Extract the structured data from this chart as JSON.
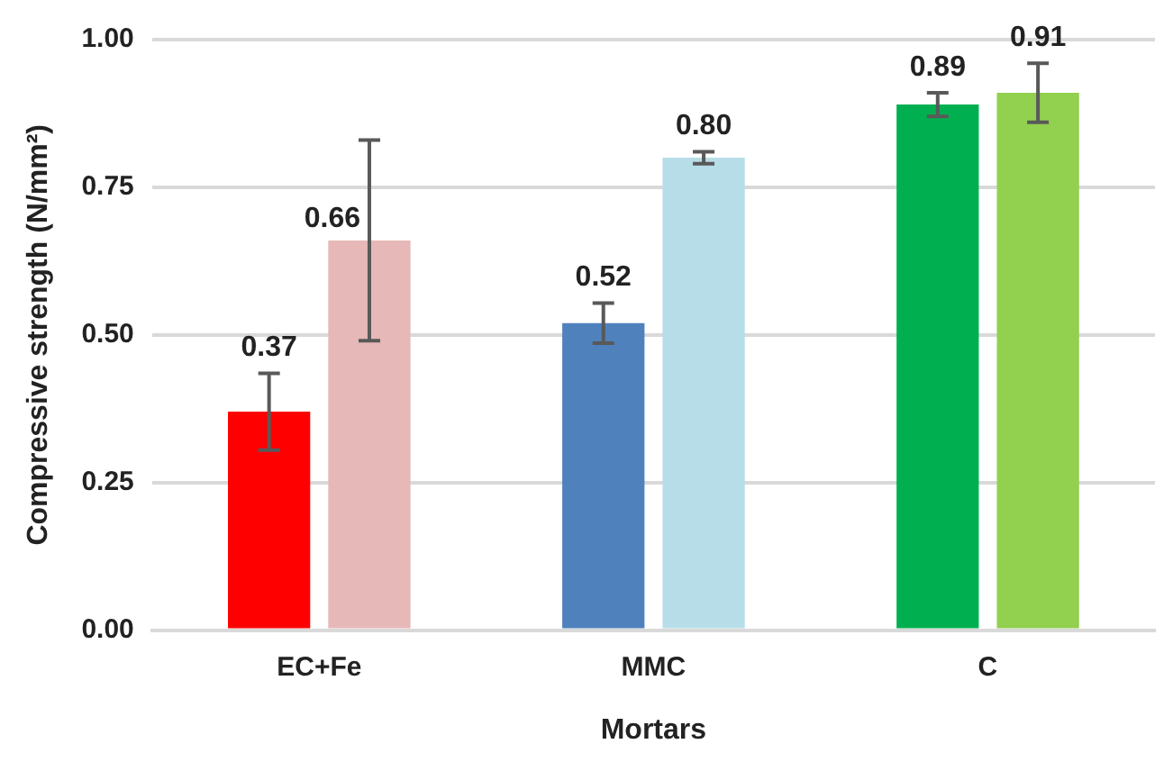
{
  "chart_data": {
    "type": "bar",
    "xlabel": "Mortars",
    "ylabel": "Compressive strength (N/mm²)",
    "categories": [
      "EC+Fe",
      "MMC",
      "C"
    ],
    "series": [
      {
        "colors": [
          "#ff0000",
          "#4f81bd",
          "#00b050"
        ],
        "values": [
          0.37,
          0.52,
          0.89
        ],
        "errors": [
          0.065,
          0.034,
          0.02
        ],
        "value_labels": [
          "0.37",
          "0.52",
          "0.89"
        ]
      },
      {
        "colors": [
          "#e6b8b7",
          "#b7dde8",
          "#92d050"
        ],
        "values": [
          0.66,
          0.8,
          0.91
        ],
        "errors": [
          0.17,
          0.01,
          0.05
        ],
        "value_labels": [
          "0.66",
          "0.80",
          "0.91"
        ]
      }
    ],
    "ylim": [
      0,
      1
    ],
    "yticks": [
      {
        "value": 0,
        "label": "0.00"
      },
      {
        "value": 0.25,
        "label": "0.25"
      },
      {
        "value": 0.5,
        "label": "0.50"
      },
      {
        "value": 0.75,
        "label": "0.75"
      },
      {
        "value": 1,
        "label": "1.00"
      }
    ],
    "grid": "y",
    "legend": false
  }
}
